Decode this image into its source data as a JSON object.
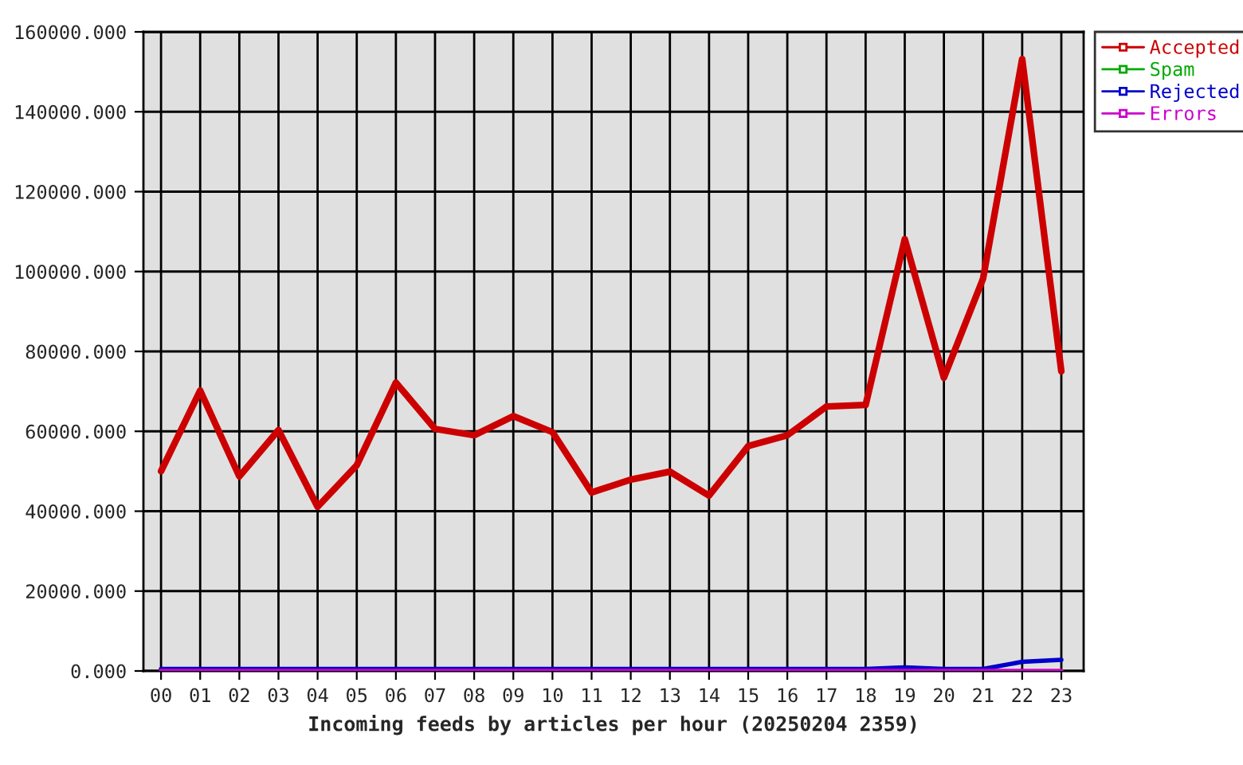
{
  "chart_data": {
    "type": "line",
    "xlabel": "Incoming feeds by articles per hour (20250204 2359)",
    "categories": [
      "00",
      "01",
      "02",
      "03",
      "04",
      "05",
      "06",
      "07",
      "08",
      "09",
      "10",
      "11",
      "12",
      "13",
      "14",
      "15",
      "16",
      "17",
      "18",
      "19",
      "20",
      "21",
      "22",
      "23"
    ],
    "series": [
      {
        "name": "Accepted",
        "color": "#cc0000",
        "values": [
          50000,
          70200,
          48700,
          60300,
          41100,
          51500,
          72200,
          60600,
          59000,
          63800,
          59800,
          44700,
          47900,
          49900,
          43900,
          56300,
          59000,
          66200,
          66600,
          108100,
          73400,
          98200,
          153200,
          75000
        ]
      },
      {
        "name": "Spam",
        "color": "#00aa00",
        "values": [
          null,
          null,
          null,
          null,
          null,
          null,
          null,
          null,
          null,
          null,
          null,
          null,
          null,
          null,
          null,
          null,
          null,
          null,
          null,
          null,
          null,
          null,
          null,
          null
        ]
      },
      {
        "name": "Rejected",
        "color": "#0000cc",
        "values": [
          500,
          500,
          500,
          500,
          500,
          500,
          500,
          500,
          500,
          500,
          500,
          500,
          500,
          500,
          500,
          500,
          500,
          500,
          500,
          900,
          500,
          500,
          2300,
          2800
        ]
      },
      {
        "name": "Errors",
        "color": "#cc00cc",
        "values": [
          0,
          0,
          0,
          0,
          0,
          0,
          0,
          0,
          0,
          0,
          0,
          0,
          0,
          0,
          0,
          0,
          0,
          0,
          0,
          0,
          0,
          0,
          0,
          0
        ]
      }
    ],
    "ylim": [
      0,
      160000
    ],
    "yticks": [
      {
        "value": 0,
        "label": "0.000"
      },
      {
        "value": 20000,
        "label": "20000.000"
      },
      {
        "value": 40000,
        "label": "40000.000"
      },
      {
        "value": 60000,
        "label": "60000.000"
      },
      {
        "value": 80000,
        "label": "80000.000"
      },
      {
        "value": 100000,
        "label": "100000.000"
      },
      {
        "value": 120000,
        "label": "120000.000"
      },
      {
        "value": 140000,
        "label": "140000.000"
      },
      {
        "value": 160000,
        "label": "160000.000"
      }
    ],
    "grid": true,
    "legend": "top right",
    "marker": "none",
    "line_style": "solid"
  }
}
